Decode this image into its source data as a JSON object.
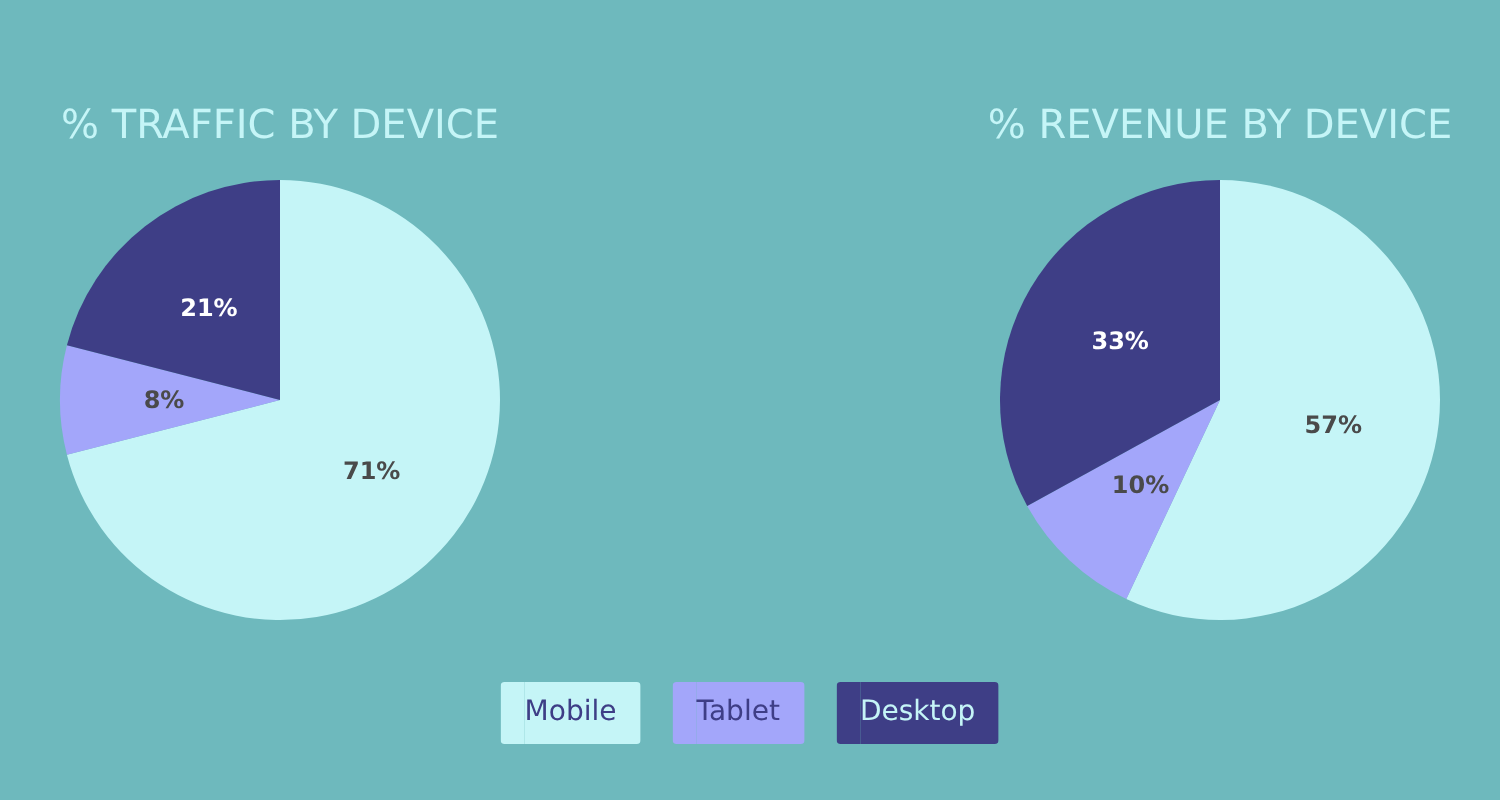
{
  "chart_data": {
    "type": "pie",
    "categories": [
      "Mobile",
      "Tablet",
      "Desktop"
    ],
    "colors": [
      "#c5f5f7",
      "#a3a6fa",
      "#3e3e86"
    ],
    "series": [
      {
        "name": "% TRAFFIC BY DEVICE",
        "values": [
          71,
          8,
          21
        ],
        "value_labels": [
          "71%",
          "8%",
          "21%"
        ]
      },
      {
        "name": "% REVENUE BY DEVICE",
        "values": [
          57,
          10,
          33
        ],
        "value_labels": [
          "57%",
          "10%",
          "33%"
        ]
      }
    ],
    "legend": "bottom"
  }
}
